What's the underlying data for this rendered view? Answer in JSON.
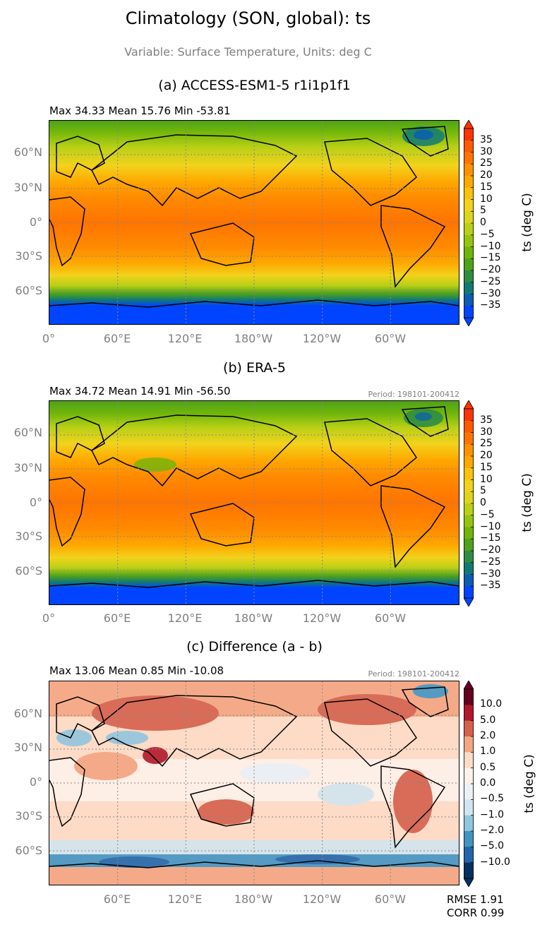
{
  "figure": {
    "title": "Climatology (SON, global): ts",
    "subtitle": "Variable: Surface Temperature, Units: deg C"
  },
  "panels": [
    {
      "title": "(a) ACCESS-ESM1-5 r1i1p1f1",
      "stats": "Max 34.33 Mean 15.76 Min -53.81",
      "period": "",
      "colorbar_label": "ts (deg C)"
    },
    {
      "title": "(b) ERA-5",
      "stats": "Max 34.72 Mean 14.91 Min -56.50",
      "period": "Period: 198101-200412",
      "colorbar_label": "ts (deg C)"
    },
    {
      "title": "(c) Difference (a - b)",
      "stats": "Max 13.06 Mean 0.85 Min -10.08",
      "period": "Period: 198101-200412",
      "colorbar_label": "ts (deg C)"
    }
  ],
  "lat_labels": [
    "60°N",
    "30°N",
    "0°",
    "30°S",
    "60°S"
  ],
  "lon_labels_ab": [
    "0°",
    "60°E",
    "120°E",
    "180°W",
    "120°W",
    "60°W"
  ],
  "lon_labels_c": [
    "60°E",
    "120°E",
    "180°W",
    "120°W",
    "60°W"
  ],
  "colorbar_abs": {
    "ticks": [
      "35",
      "30",
      "25",
      "20",
      "15",
      "10",
      "5",
      "0",
      "−5",
      "−10",
      "−15",
      "−20",
      "−25",
      "−30",
      "−35"
    ],
    "colors": [
      "#ff3300",
      "#ff5a00",
      "#ff7400",
      "#ff9100",
      "#ffa800",
      "#fcc20a",
      "#f2d21c",
      "#dcd51e",
      "#b9d016",
      "#95c40e",
      "#6fb50a",
      "#4fa21b",
      "#2f8d43",
      "#137a73",
      "#0a5db3",
      "#0044ff"
    ]
  },
  "colorbar_diff": {
    "ticks": [
      "10.0",
      "5.0",
      "2.0",
      "1.0",
      "0.5",
      "0.0",
      "−0.5",
      "−1.0",
      "−2.0",
      "−5.0",
      "−10.0"
    ],
    "colors": [
      "#67001f",
      "#b2182b",
      "#d6604d",
      "#f4a582",
      "#fddbc7",
      "#fdf1ea",
      "#eaf2f8",
      "#d1e5f0",
      "#92c5de",
      "#4393c3",
      "#2166ac",
      "#053061"
    ]
  },
  "metrics": {
    "rmse": "RMSE 1.91",
    "corr": "CORR 0.99"
  },
  "chart_data": [
    {
      "type": "heatmap",
      "title": "(a) ACCESS-ESM1-5 r1i1p1f1",
      "stats": {
        "max": 34.33,
        "mean": 15.76,
        "min": -53.81
      },
      "colorbar": {
        "label": "ts (deg C)",
        "ticks": [
          35,
          30,
          25,
          20,
          15,
          10,
          5,
          0,
          -5,
          -10,
          -15,
          -20,
          -25,
          -30,
          -35
        ]
      }
    },
    {
      "type": "heatmap",
      "title": "(b) ERA-5",
      "stats": {
        "max": 34.72,
        "mean": 14.91,
        "min": -56.5
      },
      "period": "198101-200412",
      "colorbar": {
        "label": "ts (deg C)",
        "ticks": [
          35,
          30,
          25,
          20,
          15,
          10,
          5,
          0,
          -5,
          -10,
          -15,
          -20,
          -25,
          -30,
          -35
        ]
      }
    },
    {
      "type": "heatmap",
      "title": "(c) Difference (a - b)",
      "stats": {
        "max": 13.06,
        "mean": 0.85,
        "min": -10.08
      },
      "period": "198101-200412",
      "colorbar": {
        "label": "ts (deg C)",
        "ticks": [
          10.0,
          5.0,
          2.0,
          1.0,
          0.5,
          0.0,
          -0.5,
          -1.0,
          -2.0,
          -5.0,
          -10.0
        ]
      },
      "rmse": 1.91,
      "corr": 0.99
    }
  ]
}
